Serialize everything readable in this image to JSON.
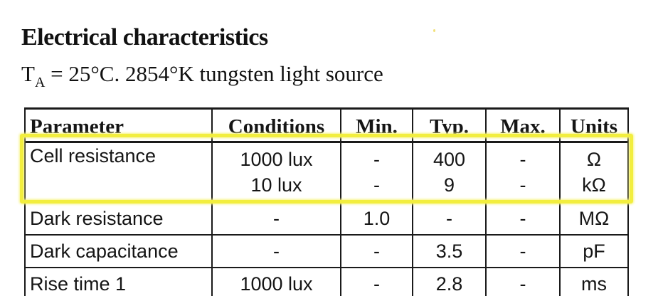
{
  "heading": "Electrical characteristics",
  "subheading": {
    "prefix": "T",
    "subscript": "A",
    "rest": " = 25°C. 2854°K tungsten light source"
  },
  "table": {
    "headers": [
      "Parameter",
      "Conditions",
      "Min.",
      "Typ.",
      "Max.",
      "Units"
    ],
    "rows": [
      {
        "parameter": "Cell resistance",
        "conditions": [
          "1000 lux",
          "10 lux"
        ],
        "min": [
          "-",
          "-"
        ],
        "typ": [
          "400",
          "9"
        ],
        "max": [
          "-",
          "-"
        ],
        "units": [
          "Ω",
          "kΩ"
        ]
      },
      {
        "parameter": "Dark resistance",
        "conditions": [
          "-"
        ],
        "min": [
          "1.0"
        ],
        "typ": [
          "-"
        ],
        "max": [
          "-"
        ],
        "units": [
          "MΩ"
        ]
      },
      {
        "parameter": "Dark capacitance",
        "conditions": [
          "-"
        ],
        "min": [
          "-"
        ],
        "typ": [
          "3.5"
        ],
        "max": [
          "-"
        ],
        "units": [
          "pF"
        ]
      },
      {
        "parameter": "Rise time 1",
        "conditions": [
          "1000 lux"
        ],
        "min": [
          "-"
        ],
        "typ": [
          "2.8"
        ],
        "max": [
          "-"
        ],
        "units": [
          "ms"
        ]
      }
    ]
  },
  "highlight_color": "#f2ee3e"
}
